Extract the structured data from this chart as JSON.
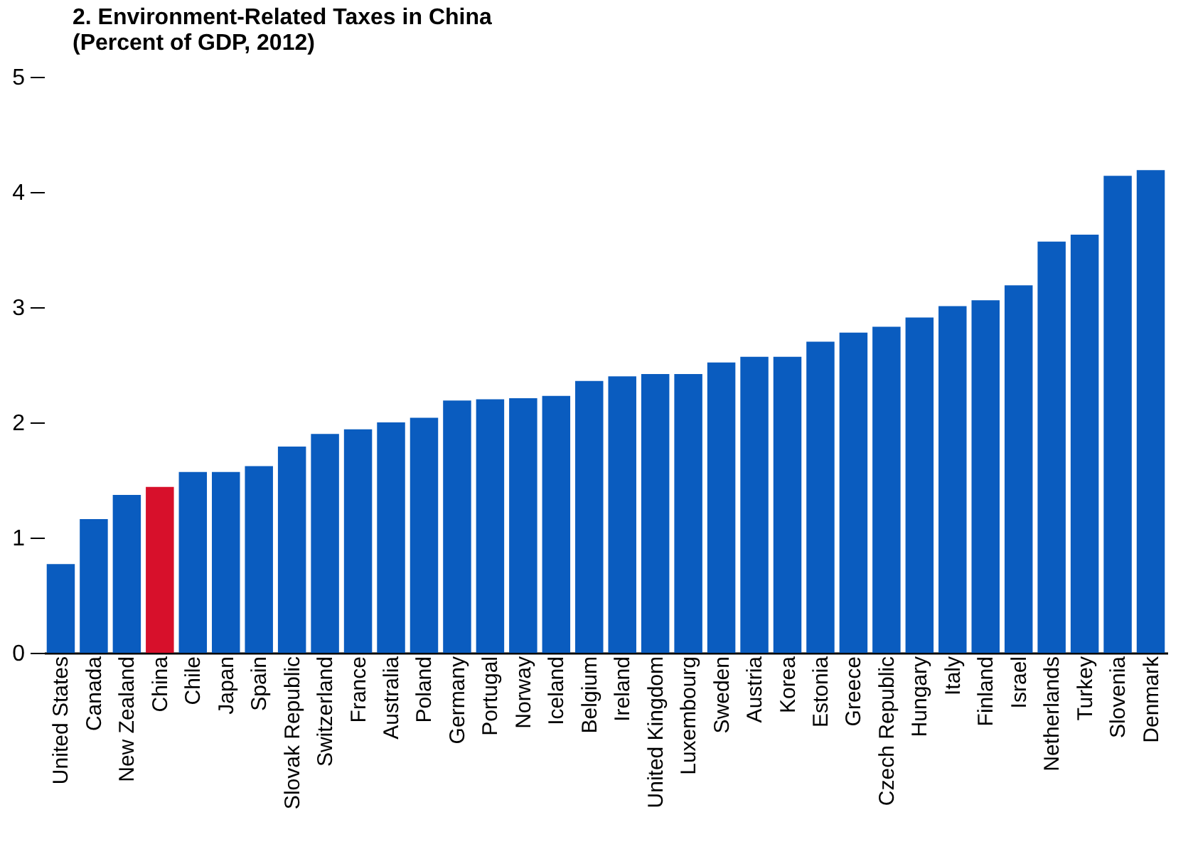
{
  "chart_data": {
    "type": "bar",
    "title": "2. Environment-Related Taxes in China",
    "subtitle": "(Percent of GDP, 2012)",
    "categories": [
      "United States",
      "Canada",
      "New Zealand",
      "China",
      "Chile",
      "Japan",
      "Spain",
      "Slovak Republic",
      "Switzerland",
      "France",
      "Australia",
      "Poland",
      "Germany",
      "Portugal",
      "Norway",
      "Iceland",
      "Belgium",
      "Ireland",
      "United Kingdom",
      "Luxembourg",
      "Sweden",
      "Austria",
      "Korea",
      "Estonia",
      "Greece",
      "Czech Republic",
      "Hungary",
      "Italy",
      "Finland",
      "Israel",
      "Netherlands",
      "Turkey",
      "Slovenia",
      "Denmark"
    ],
    "values": [
      0.77,
      1.16,
      1.37,
      1.44,
      1.57,
      1.57,
      1.62,
      1.79,
      1.9,
      1.94,
      2.0,
      2.04,
      2.19,
      2.2,
      2.21,
      2.23,
      2.36,
      2.4,
      2.42,
      2.42,
      2.52,
      2.57,
      2.57,
      2.7,
      2.78,
      2.83,
      2.91,
      3.01,
      3.06,
      3.19,
      3.57,
      3.63,
      4.14,
      4.19
    ],
    "colors": [
      "#0a5cbf",
      "#0a5cbf",
      "#0a5cbf",
      "#d7102b",
      "#0a5cbf",
      "#0a5cbf",
      "#0a5cbf",
      "#0a5cbf",
      "#0a5cbf",
      "#0a5cbf",
      "#0a5cbf",
      "#0a5cbf",
      "#0a5cbf",
      "#0a5cbf",
      "#0a5cbf",
      "#0a5cbf",
      "#0a5cbf",
      "#0a5cbf",
      "#0a5cbf",
      "#0a5cbf",
      "#0a5cbf",
      "#0a5cbf",
      "#0a5cbf",
      "#0a5cbf",
      "#0a5cbf",
      "#0a5cbf",
      "#0a5cbf",
      "#0a5cbf",
      "#0a5cbf",
      "#0a5cbf",
      "#0a5cbf",
      "#0a5cbf",
      "#0a5cbf",
      "#0a5cbf"
    ],
    "ylim": [
      0,
      5
    ],
    "yticks": [
      0,
      1,
      2,
      3,
      4,
      5
    ]
  }
}
